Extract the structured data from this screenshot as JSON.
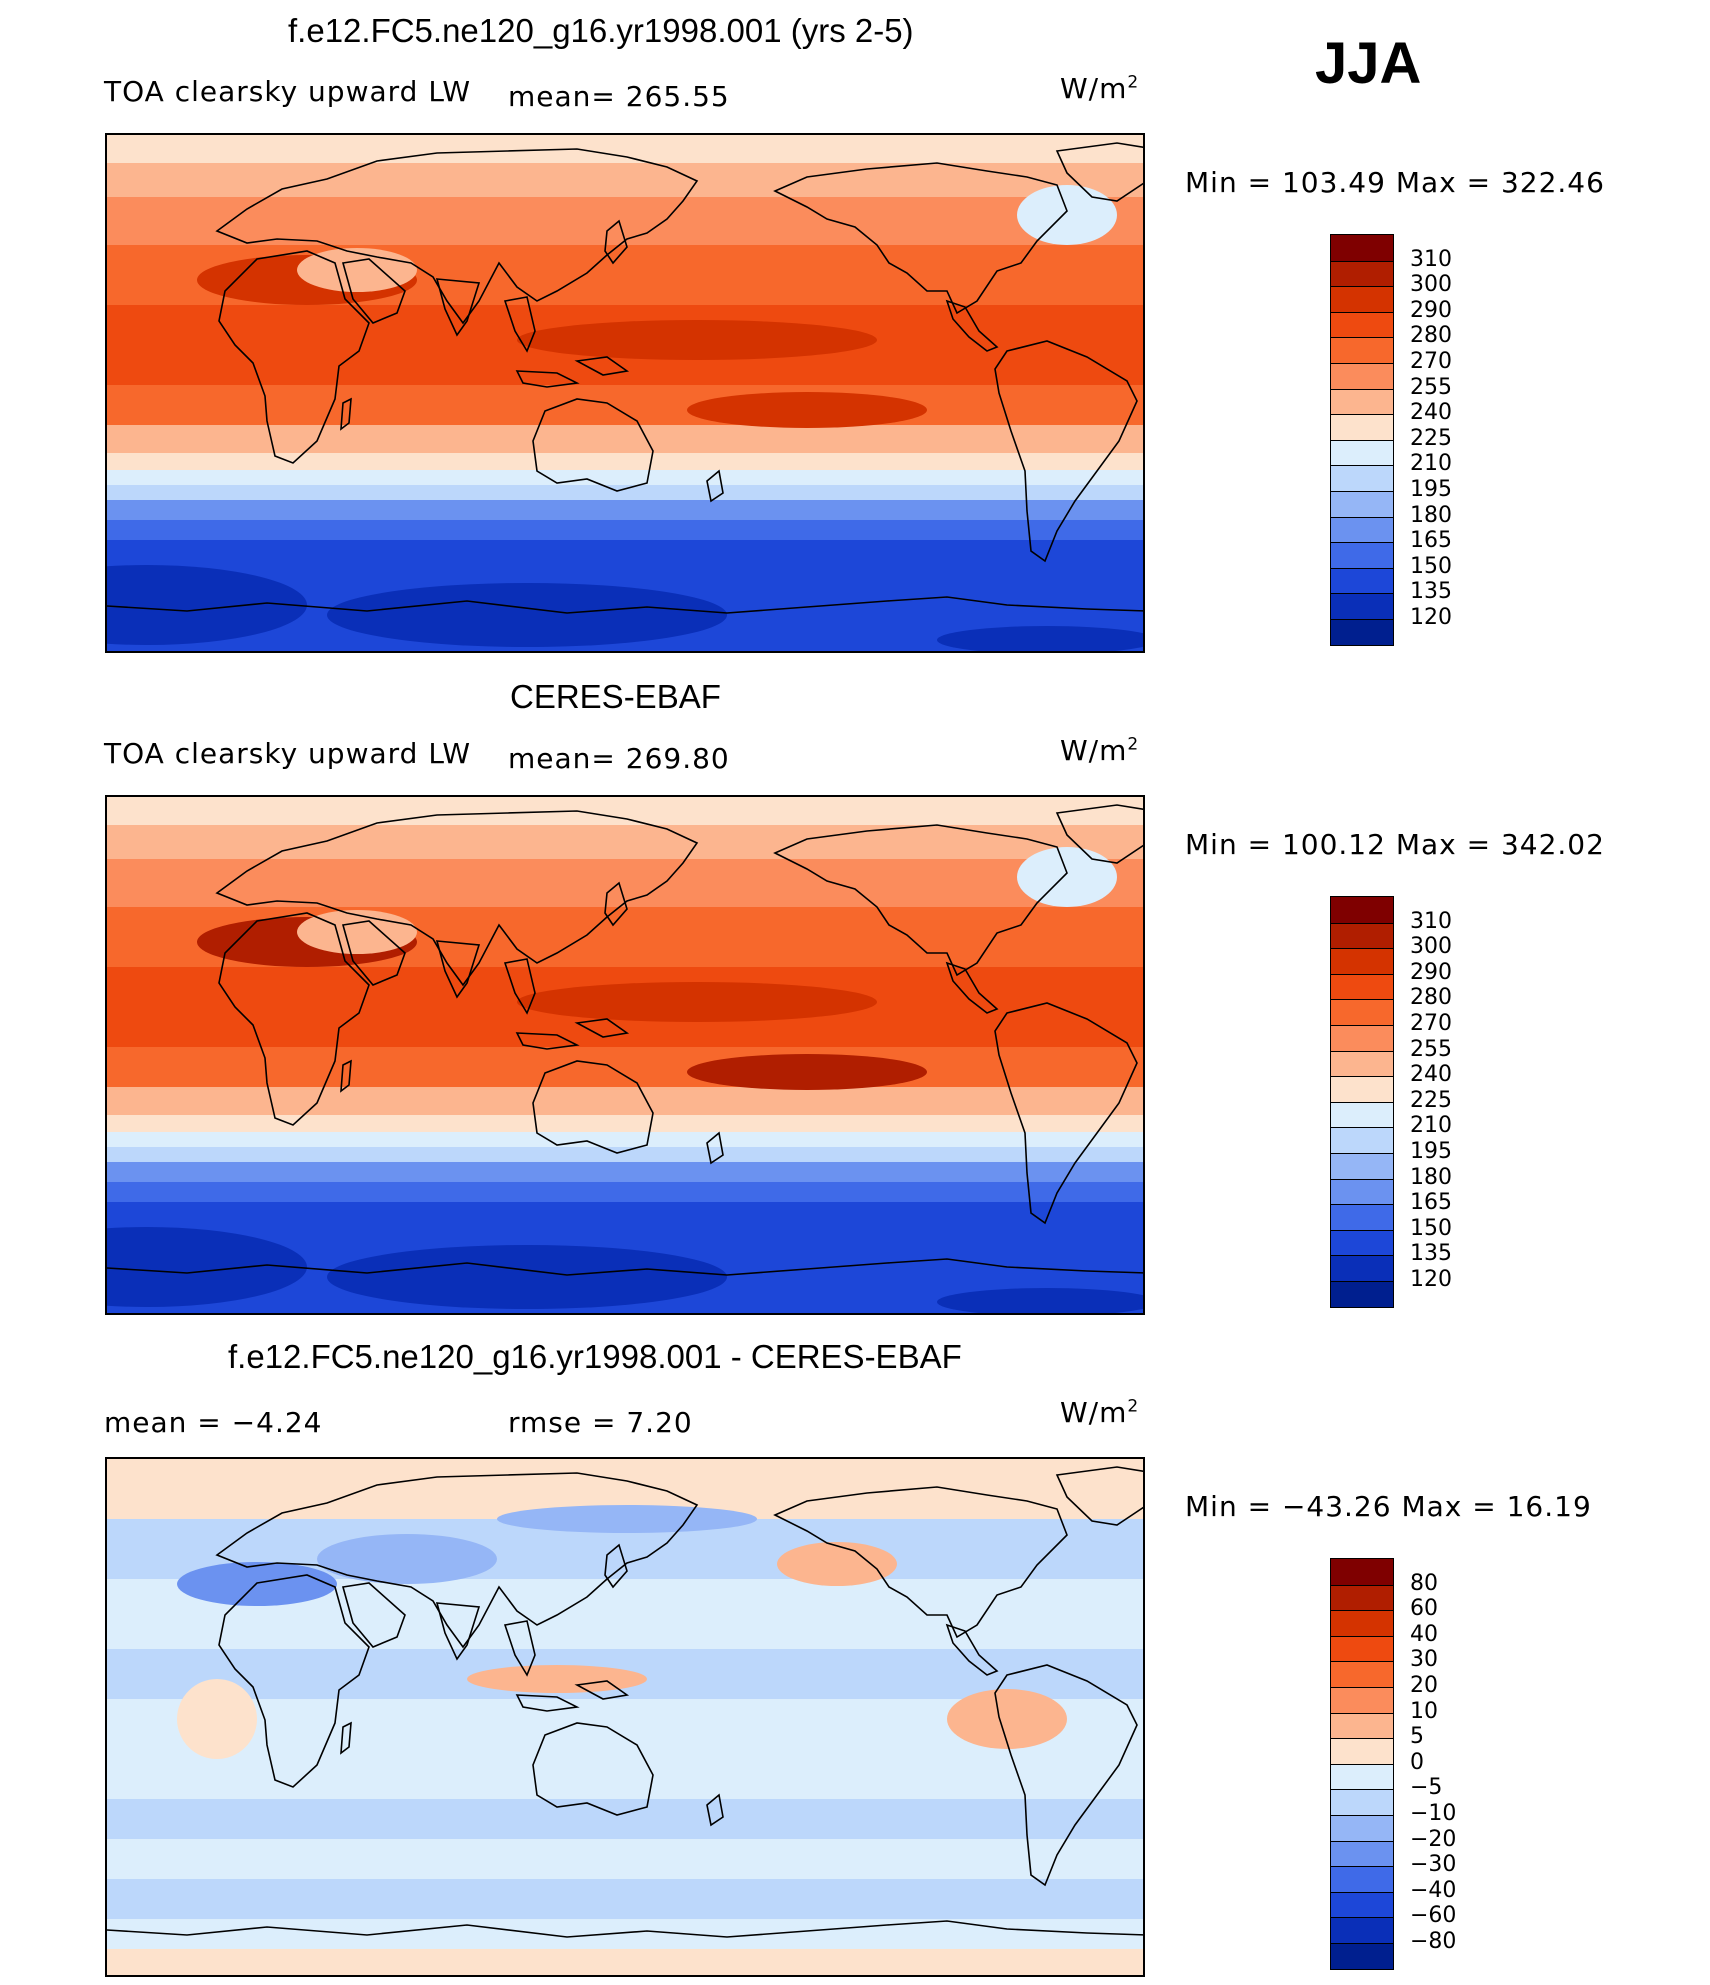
{
  "season": "JJA",
  "panels": [
    {
      "title": "f.e12.FC5.ne120_g16.yr1998.001 (yrs 2-5)",
      "left_label": "TOA clearsky upward LW",
      "center_label": "mean=  265.55",
      "units": "W/m",
      "units_sup": "2",
      "minmax": "Min  =  103.49  Max  =  322.46",
      "levels": [
        "310",
        "300",
        "290",
        "280",
        "270",
        "255",
        "240",
        "225",
        "210",
        "195",
        "180",
        "165",
        "150",
        "135",
        "120"
      ],
      "colors": [
        "#7f0000",
        "#b01e00",
        "#d43300",
        "#ee4a10",
        "#f7682c",
        "#fb8c5c",
        "#fcb58f",
        "#fde2cc",
        "#dceefc",
        "#bcd7fb",
        "#95b6f6",
        "#6b92f0",
        "#3f6ae8",
        "#1d47d8",
        "#0a2fb8",
        "#001f8f"
      ],
      "map_variant": "model"
    },
    {
      "title": "CERES-EBAF",
      "left_label": "TOA clearsky upward LW",
      "center_label": "mean=  269.80",
      "units": "W/m",
      "units_sup": "2",
      "minmax": "Min  =  100.12  Max  =  342.02",
      "levels": [
        "310",
        "300",
        "290",
        "280",
        "270",
        "255",
        "240",
        "225",
        "210",
        "195",
        "180",
        "165",
        "150",
        "135",
        "120"
      ],
      "colors": [
        "#7f0000",
        "#b01e00",
        "#d43300",
        "#ee4a10",
        "#f7682c",
        "#fb8c5c",
        "#fcb58f",
        "#fde2cc",
        "#dceefc",
        "#bcd7fb",
        "#95b6f6",
        "#6b92f0",
        "#3f6ae8",
        "#1d47d8",
        "#0a2fb8",
        "#001f8f"
      ],
      "map_variant": "obs"
    },
    {
      "title": "f.e12.FC5.ne120_g16.yr1998.001 - CERES-EBAF",
      "left_label": "mean =    −4.24",
      "center_label": "rmse =     7.20",
      "units": "W/m",
      "units_sup": "2",
      "minmax": "Min  =  −43.26  Max  =    16.19",
      "levels": [
        "80",
        "60",
        "40",
        "30",
        "20",
        "10",
        "5",
        "0",
        "−5",
        "−10",
        "−20",
        "−30",
        "−40",
        "−60",
        "−80"
      ],
      "colors": [
        "#7f0000",
        "#b01e00",
        "#d43300",
        "#ee4a10",
        "#f7682c",
        "#fb8c5c",
        "#fcb58f",
        "#fde2cc",
        "#dceefc",
        "#bcd7fb",
        "#95b6f6",
        "#6b92f0",
        "#3f6ae8",
        "#1d47d8",
        "#0a2fb8",
        "#001f8f"
      ],
      "map_variant": "diff"
    }
  ]
}
